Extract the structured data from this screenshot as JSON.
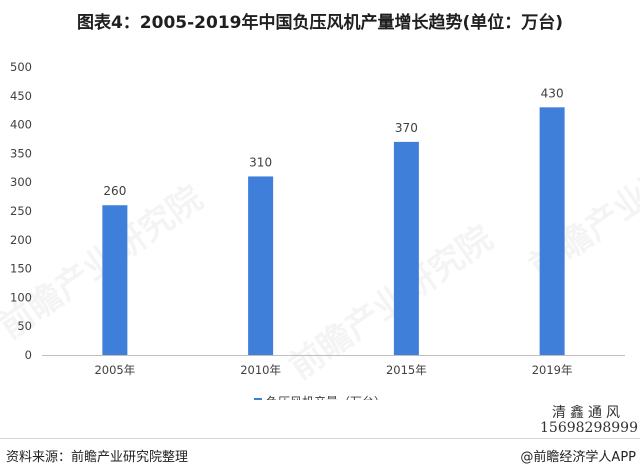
{
  "title": "图表4：2005-2019年中国负压风机产量增长趋势(单位：万台)",
  "chart_data": {
    "type": "bar",
    "title": "图表4：2005-2019年中国负压风机产量增长趋势(单位：万台)",
    "categories": [
      "2005年",
      "2010年",
      "2015年",
      "2019年"
    ],
    "series": [
      {
        "name": "负压风机产量（万台）",
        "values": [
          260,
          310,
          370,
          430
        ]
      }
    ],
    "yticks": [
      0,
      50,
      100,
      150,
      200,
      250,
      300,
      350,
      400,
      450,
      500
    ],
    "ylim": [
      0,
      500
    ],
    "grid": false,
    "legend": "bottom",
    "bar_color": "#3f7fd9"
  },
  "source": "资料来源：前瞻产业研究院整理",
  "brand": "@前瞻经济学人APP",
  "stamp": {
    "name": "清鑫通风",
    "phone": "15698298999"
  },
  "watermark": "前瞻产业研究院"
}
